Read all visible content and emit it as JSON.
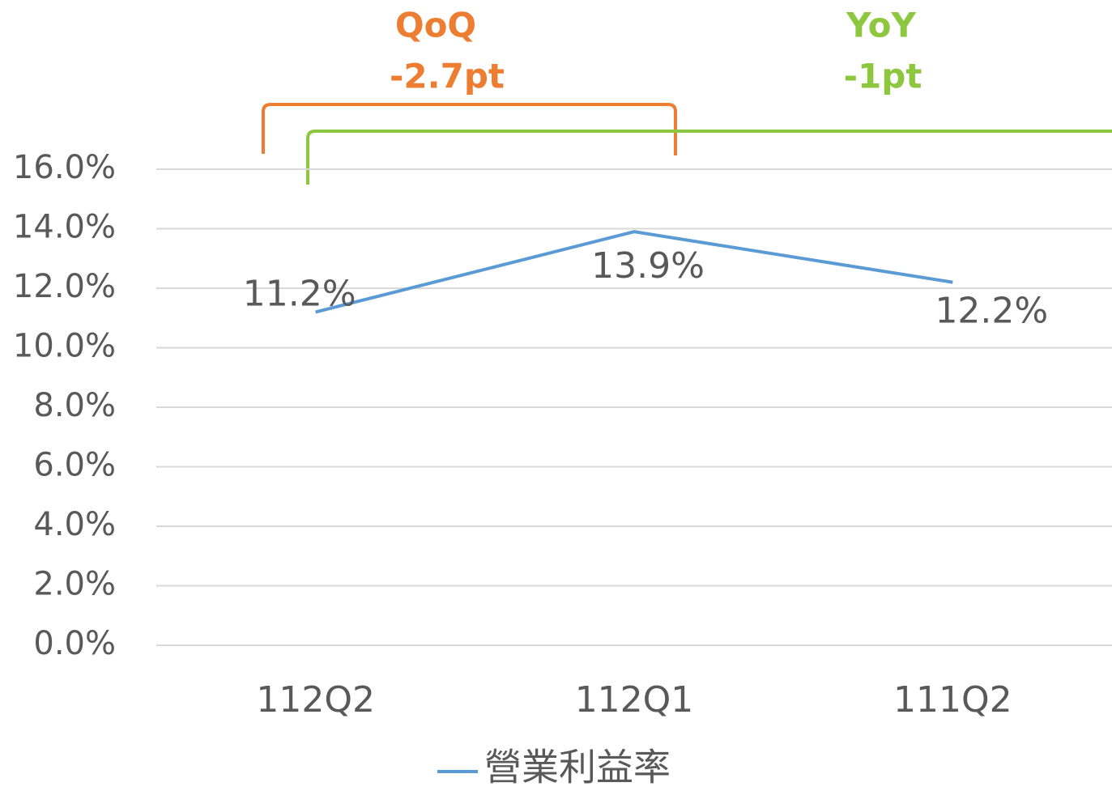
{
  "chart_data": {
    "type": "line",
    "categories": [
      "112Q2",
      "112Q1",
      "111Q2"
    ],
    "series": [
      {
        "name": "營業利益率",
        "color": "#5b9bd5",
        "values": [
          11.2,
          13.9,
          12.2
        ],
        "value_labels": [
          "11.2%",
          "13.9%",
          "12.2%"
        ]
      }
    ],
    "ylim": [
      0,
      16
    ],
    "yticks": [
      {
        "value": 0,
        "label": "0.0%"
      },
      {
        "value": 2,
        "label": "2.0%"
      },
      {
        "value": 4,
        "label": "4.0%"
      },
      {
        "value": 6,
        "label": "6.0%"
      },
      {
        "value": 8,
        "label": "8.0%"
      },
      {
        "value": 10,
        "label": "10.0%"
      },
      {
        "value": 12,
        "label": "12.0%"
      },
      {
        "value": 14,
        "label": "14.0%"
      },
      {
        "value": 16,
        "label": "16.0%"
      }
    ],
    "grid": true,
    "legend": "bottom",
    "annotations": [
      {
        "title": "QoQ",
        "text": "-2.7pt",
        "color": "#ed7d31"
      },
      {
        "title": "YoY",
        "text": "-1pt",
        "color": "#8dc63f"
      }
    ]
  }
}
